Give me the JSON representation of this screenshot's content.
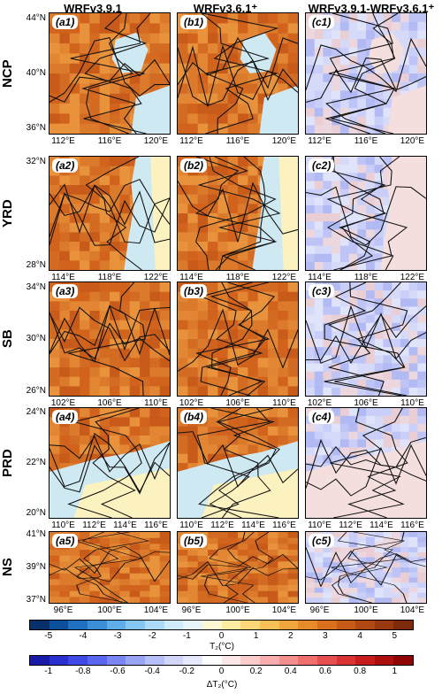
{
  "columns": [
    "WRFv3.9.1",
    "WRFv3.6.1⁺",
    "WRFv3.9.1-WRFv3.6.1⁺"
  ],
  "rows": [
    {
      "name": "NCP",
      "labels": [
        "(a1)",
        "(b1)",
        "(c1)"
      ],
      "yticks": [
        "44°N",
        "40°N",
        "36°N"
      ],
      "xticks": [
        "112°E",
        "116°E",
        "120°E"
      ]
    },
    {
      "name": "YRD",
      "labels": [
        "(a2)",
        "(b2)",
        "(c2)"
      ],
      "yticks": [
        "32°N",
        "28°N"
      ],
      "xticks": [
        "114°E",
        "118°E",
        "122°E"
      ]
    },
    {
      "name": "SB",
      "labels": [
        "(a3)",
        "(b3)",
        "(c3)"
      ],
      "yticks": [
        "34°N",
        "30°N",
        "26°N"
      ],
      "xticks": [
        "102°E",
        "106°E",
        "110°E"
      ]
    },
    {
      "name": "PRD",
      "labels": [
        "(a4)",
        "(b4)",
        "(c4)"
      ],
      "yticks": [
        "24°N",
        "22°N",
        "20°N"
      ],
      "xticks": [
        "110°E",
        "112°E",
        "114°E",
        "116°E"
      ]
    },
    {
      "name": "NS",
      "labels": [
        "(a5)",
        "(b5)",
        "(c5)"
      ],
      "yticks": [
        "41°N",
        "39°N",
        "37°N"
      ],
      "xticks": [
        "96°E",
        "100°E",
        "104°E"
      ]
    }
  ],
  "colorbar_t2": {
    "ticks": [
      "-5",
      "-4",
      "-3",
      "-2",
      "-1",
      "0",
      "1",
      "2",
      "3",
      "4",
      "5"
    ],
    "title": "T₂(°C)",
    "colors": [
      "#08306b",
      "#0b4f9c",
      "#1f6fc2",
      "#3b8fd6",
      "#5fadea",
      "#86c6f2",
      "#acdaf7",
      "#cfeafa",
      "#e7f4fa",
      "#fcf8d2",
      "#fdeba0",
      "#fcd777",
      "#f8c057",
      "#f1a53d",
      "#e78a2a",
      "#d9701e",
      "#c65a16",
      "#b04812",
      "#98390f",
      "#7e2b0b"
    ]
  },
  "colorbar_dt2": {
    "ticks": [
      "-1",
      "-0.8",
      "-0.6",
      "-0.4",
      "-0.2",
      "0",
      "0.2",
      "0.4",
      "0.6",
      "0.8",
      "1"
    ],
    "title": "ΔT₂(°C)",
    "colors": [
      "#1a1aa8",
      "#2b2fcf",
      "#3f4ae6",
      "#5a66f0",
      "#7a86f3",
      "#9aa4f5",
      "#b7bff7",
      "#d2d7fa",
      "#e6e9fc",
      "#ffffff",
      "#fde7e7",
      "#fbcccc",
      "#f8aeae",
      "#f48f8f",
      "#ef6f6f",
      "#e64f4f",
      "#d93232",
      "#c61c1c",
      "#ad0e0e",
      "#8f0505"
    ]
  }
}
